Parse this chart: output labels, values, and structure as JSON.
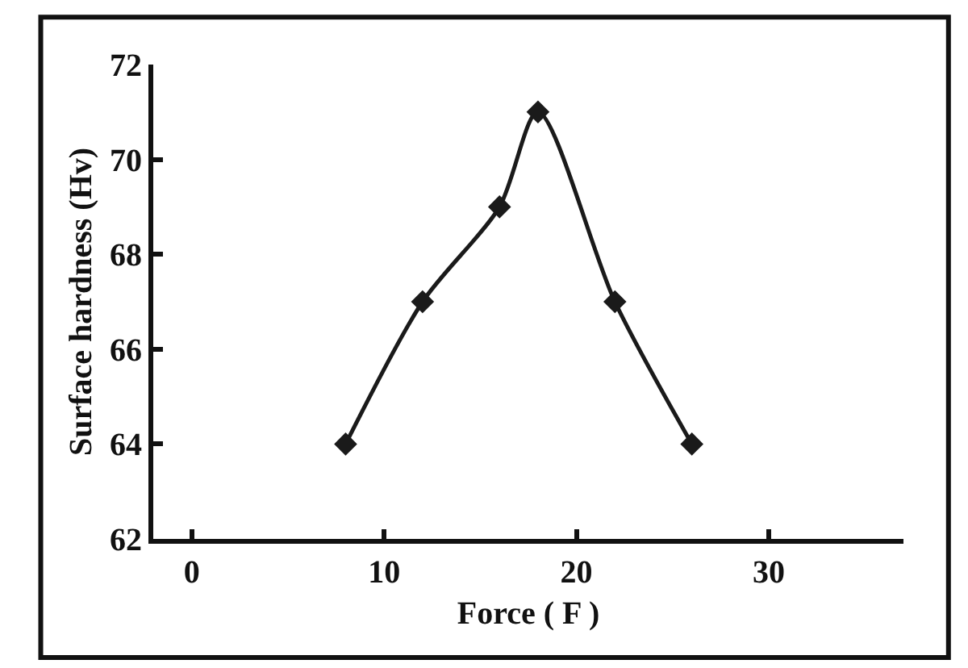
{
  "chart_data": {
    "type": "line",
    "xlabel": "Force ( F )",
    "ylabel": "Surface hardness (Hv)",
    "x": [
      8,
      12,
      16,
      18,
      22,
      26
    ],
    "series": [
      {
        "color": "#1a1a1a",
        "values": [
          64,
          67,
          69,
          71,
          67,
          64
        ]
      }
    ],
    "xlim": [
      -2,
      37
    ],
    "xticks": [
      0,
      10,
      20,
      30
    ],
    "ylim": [
      62,
      72
    ],
    "yticks": [
      62,
      64,
      66,
      68,
      70,
      72
    ],
    "marker": "diamond",
    "line_style": "solid"
  }
}
